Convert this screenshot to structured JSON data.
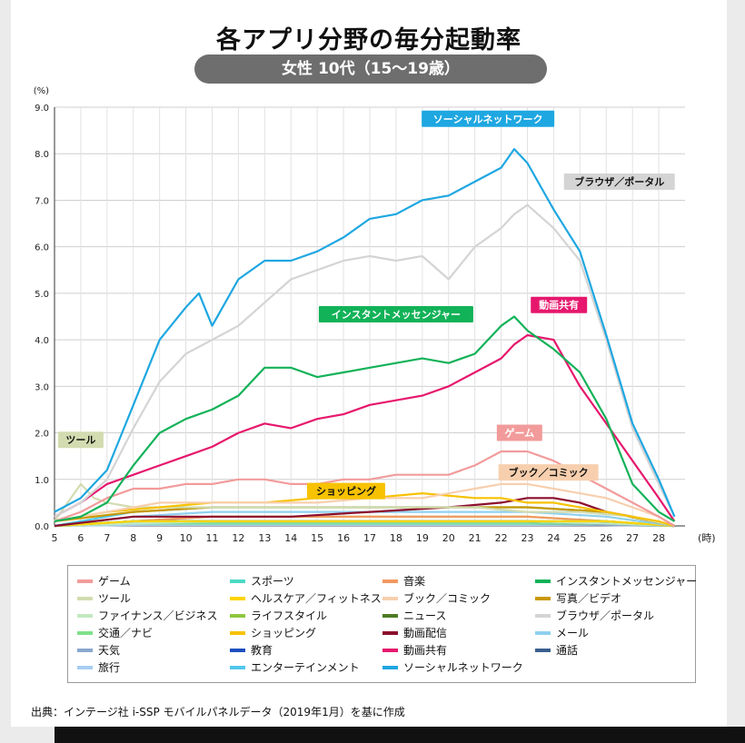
{
  "title": "各アプリ分野の毎分起動率",
  "subtitle": "女性 10代（15～19歳）",
  "source": "出典：インテージ社 i-SSP モバイルパネルデータ（2019年1月）を基に作成",
  "chart_data": {
    "type": "line",
    "ylabel": "(%)",
    "xlabel": "(時)",
    "xlim": [
      5,
      29
    ],
    "ylim": [
      0,
      9.0
    ],
    "yticks": [
      "0.0",
      "1.0",
      "2.0",
      "3.0",
      "4.0",
      "5.0",
      "6.0",
      "7.0",
      "8.0",
      "9.0"
    ],
    "xticks": [
      "5",
      "6",
      "7",
      "8",
      "9",
      "10",
      "11",
      "12",
      "13",
      "14",
      "15",
      "16",
      "17",
      "18",
      "19",
      "20",
      "21",
      "22",
      "23",
      "24",
      "25",
      "26",
      "27",
      "28"
    ],
    "grid": true,
    "legend_position": "bottom",
    "series": [
      {
        "name": "ソーシャルネットワーク",
        "color": "#1ea7e1",
        "label_on_chart": true,
        "x": [
          5,
          6,
          7,
          8,
          9,
          10,
          10.5,
          11,
          12,
          13,
          14,
          15,
          16,
          17,
          18,
          19,
          20,
          21,
          22,
          22.5,
          23,
          24,
          25,
          26,
          27,
          28,
          28.6
        ],
        "y": [
          0.3,
          0.6,
          1.2,
          2.6,
          4.0,
          4.7,
          5.0,
          4.3,
          5.3,
          5.7,
          5.7,
          5.9,
          6.2,
          6.6,
          6.7,
          7.0,
          7.1,
          7.4,
          7.7,
          8.1,
          7.8,
          6.8,
          5.9,
          4.1,
          2.2,
          1.0,
          0.2
        ]
      },
      {
        "name": "ブラウザ／ポータル",
        "color": "#d4d4d4",
        "label_on_chart": true,
        "x": [
          5,
          6,
          7,
          8,
          9,
          10,
          11,
          12,
          13,
          14,
          15,
          16,
          17,
          18,
          19,
          20,
          21,
          22,
          22.5,
          23,
          24,
          25,
          26,
          27,
          28,
          28.6
        ],
        "y": [
          0.2,
          0.5,
          1.0,
          2.1,
          3.1,
          3.7,
          4.0,
          4.3,
          4.8,
          5.3,
          5.5,
          5.7,
          5.8,
          5.7,
          5.8,
          5.3,
          6.0,
          6.4,
          6.7,
          6.9,
          6.4,
          5.7,
          4.0,
          2.1,
          0.9,
          0.2
        ]
      },
      {
        "name": "インスタントメッセンジャー",
        "color": "#12b258",
        "label_on_chart": true,
        "x": [
          5,
          6,
          7,
          8,
          9,
          10,
          11,
          12,
          13,
          14,
          15,
          16,
          17,
          18,
          19,
          20,
          21,
          22,
          22.5,
          23,
          24,
          25,
          26,
          27,
          28,
          28.6
        ],
        "y": [
          0.1,
          0.2,
          0.5,
          1.3,
          2.0,
          2.3,
          2.5,
          2.8,
          3.4,
          3.4,
          3.2,
          3.3,
          3.4,
          3.5,
          3.6,
          3.5,
          3.7,
          4.3,
          4.5,
          4.2,
          3.8,
          3.3,
          2.3,
          0.9,
          0.3,
          0.1
        ]
      },
      {
        "name": "動画共有",
        "color": "#e6176d",
        "label_on_chart": true,
        "x": [
          5,
          6,
          7,
          8,
          9,
          10,
          11,
          12,
          13,
          14,
          15,
          16,
          17,
          18,
          19,
          20,
          21,
          22,
          22.5,
          23,
          24,
          25,
          26,
          27,
          28,
          28.6
        ],
        "y": [
          0.2,
          0.5,
          0.9,
          1.1,
          1.3,
          1.5,
          1.7,
          2.0,
          2.2,
          2.1,
          2.3,
          2.4,
          2.6,
          2.7,
          2.8,
          3.0,
          3.3,
          3.6,
          3.9,
          4.1,
          4.0,
          3.0,
          2.2,
          1.4,
          0.6,
          0.1
        ]
      },
      {
        "name": "ゲーム",
        "color": "#f29b9b",
        "label_on_chart": true,
        "x": [
          5,
          6,
          7,
          8,
          9,
          10,
          11,
          12,
          13,
          14,
          15,
          16,
          17,
          18,
          19,
          20,
          21,
          22,
          23,
          24,
          25,
          26,
          27,
          28,
          28.6
        ],
        "y": [
          0.1,
          0.3,
          0.6,
          0.8,
          0.8,
          0.9,
          0.9,
          1.0,
          1.0,
          0.9,
          0.9,
          1.0,
          1.0,
          1.1,
          1.1,
          1.1,
          1.3,
          1.6,
          1.6,
          1.4,
          1.1,
          0.8,
          0.5,
          0.2,
          0.0
        ]
      },
      {
        "name": "ブック／コミック",
        "color": "#f7cfae",
        "label_on_chart": true,
        "x": [
          5,
          7,
          9,
          11,
          13,
          15,
          17,
          19,
          21,
          22,
          23,
          24,
          25,
          26,
          27,
          28,
          28.6
        ],
        "y": [
          0.1,
          0.3,
          0.5,
          0.5,
          0.5,
          0.5,
          0.6,
          0.6,
          0.8,
          0.9,
          0.9,
          0.8,
          0.7,
          0.6,
          0.4,
          0.2,
          0.0
        ]
      },
      {
        "name": "ショッピング",
        "color": "#f7c200",
        "label_on_chart": true,
        "x": [
          5,
          7,
          9,
          11,
          13,
          15,
          17,
          19,
          21,
          22,
          23,
          24,
          25,
          26,
          27,
          28,
          28.6
        ],
        "y": [
          0.1,
          0.3,
          0.4,
          0.5,
          0.5,
          0.6,
          0.6,
          0.7,
          0.6,
          0.6,
          0.5,
          0.5,
          0.4,
          0.3,
          0.2,
          0.1,
          0.0
        ]
      },
      {
        "name": "ツール",
        "color": "#d2dcb0",
        "label_on_chart": true,
        "x": [
          5,
          6,
          6.5,
          7,
          8,
          9,
          11,
          13,
          15,
          17,
          19,
          21,
          23,
          25,
          27,
          28.6
        ],
        "y": [
          0.1,
          0.9,
          0.6,
          0.5,
          0.4,
          0.4,
          0.4,
          0.4,
          0.4,
          0.4,
          0.4,
          0.4,
          0.3,
          0.3,
          0.2,
          0.0
        ]
      },
      {
        "name": "写真／ビデオ",
        "color": "#c99800",
        "label_on_chart": false,
        "x": [
          5,
          8,
          11,
          14,
          17,
          20,
          23,
          26,
          28.6
        ],
        "y": [
          0.1,
          0.3,
          0.4,
          0.4,
          0.4,
          0.4,
          0.4,
          0.3,
          0.0
        ]
      },
      {
        "name": "動画配信",
        "color": "#8c0d2c",
        "label_on_chart": false,
        "x": [
          5,
          8,
          11,
          14,
          17,
          20,
          22,
          23,
          24,
          25,
          26,
          27,
          28.6
        ],
        "y": [
          0.0,
          0.2,
          0.2,
          0.2,
          0.3,
          0.4,
          0.5,
          0.6,
          0.6,
          0.5,
          0.3,
          0.2,
          0.0
        ]
      },
      {
        "name": "エンターテインメント",
        "color": "#51c7ec",
        "label_on_chart": false,
        "x": [
          5,
          8,
          11,
          14,
          17,
          20,
          23,
          26,
          28.6
        ],
        "y": [
          0.0,
          0.3,
          0.4,
          0.4,
          0.4,
          0.4,
          0.4,
          0.3,
          0.0
        ]
      },
      {
        "name": "メール",
        "color": "#8fd0ee",
        "label_on_chart": false,
        "x": [
          5,
          8,
          11,
          14,
          17,
          20,
          23,
          26,
          28.6
        ],
        "y": [
          0.0,
          0.2,
          0.3,
          0.3,
          0.3,
          0.3,
          0.3,
          0.2,
          0.0
        ]
      },
      {
        "name": "ヘルスケア／フィットネス",
        "color": "#ffd400",
        "label_on_chart": false,
        "x": [
          5,
          8,
          11,
          14,
          17,
          20,
          23,
          26,
          28.6
        ],
        "y": [
          0.0,
          0.1,
          0.1,
          0.1,
          0.1,
          0.1,
          0.1,
          0.1,
          0.0
        ]
      },
      {
        "name": "スポーツ",
        "color": "#4cd9c3",
        "label_on_chart": false,
        "x": [
          5,
          8,
          11,
          14,
          17,
          20,
          23,
          26,
          28.6
        ],
        "y": [
          0.0,
          0.1,
          0.1,
          0.1,
          0.1,
          0.1,
          0.1,
          0.1,
          0.0
        ]
      },
      {
        "name": "音楽",
        "color": "#f49860",
        "label_on_chart": false,
        "x": [
          5,
          8,
          11,
          14,
          17,
          20,
          23,
          26,
          28.6
        ],
        "y": [
          0.0,
          0.1,
          0.2,
          0.2,
          0.2,
          0.2,
          0.2,
          0.1,
          0.0
        ]
      },
      {
        "name": "ファイナンス／ビジネス",
        "color": "#c3e8c0",
        "label_on_chart": false,
        "x": [
          5,
          8,
          11,
          14,
          17,
          20,
          23,
          26,
          28.6
        ],
        "y": [
          0.0,
          0.05,
          0.1,
          0.1,
          0.1,
          0.1,
          0.1,
          0.05,
          0.0
        ]
      },
      {
        "name": "ライフスタイル",
        "color": "#8dc63f",
        "label_on_chart": false,
        "x": [
          5,
          8,
          11,
          14,
          17,
          20,
          23,
          26,
          28.6
        ],
        "y": [
          0.0,
          0.1,
          0.2,
          0.2,
          0.2,
          0.2,
          0.2,
          0.1,
          0.0
        ]
      },
      {
        "name": "ニュース",
        "color": "#4f7a24",
        "label_on_chart": false,
        "x": [
          5,
          8,
          11,
          14,
          17,
          20,
          23,
          26,
          28.6
        ],
        "y": [
          0.0,
          0.1,
          0.1,
          0.1,
          0.1,
          0.1,
          0.1,
          0.05,
          0.0
        ]
      },
      {
        "name": "交通／ナビ",
        "color": "#7fe08a",
        "label_on_chart": false,
        "x": [
          5,
          8,
          11,
          14,
          17,
          20,
          23,
          26,
          28.6
        ],
        "y": [
          0.0,
          0.05,
          0.05,
          0.05,
          0.05,
          0.05,
          0.05,
          0.05,
          0.0
        ]
      },
      {
        "name": "天気",
        "color": "#8aa7cf",
        "label_on_chart": false,
        "x": [
          5,
          8,
          11,
          14,
          17,
          20,
          23,
          26,
          28.6
        ],
        "y": [
          0.0,
          0.05,
          0.05,
          0.05,
          0.05,
          0.05,
          0.05,
          0.02,
          0.0
        ]
      },
      {
        "name": "教育",
        "color": "#1f4fbf",
        "label_on_chart": false,
        "x": [
          5,
          8,
          11,
          14,
          17,
          20,
          23,
          26,
          28.6
        ],
        "y": [
          0.0,
          0.1,
          0.1,
          0.1,
          0.1,
          0.1,
          0.1,
          0.05,
          0.0
        ]
      },
      {
        "name": "旅行",
        "color": "#a6cdf2",
        "label_on_chart": false,
        "x": [
          5,
          8,
          11,
          14,
          17,
          20,
          23,
          26,
          28.6
        ],
        "y": [
          0.0,
          0.02,
          0.02,
          0.02,
          0.02,
          0.02,
          0.02,
          0.02,
          0.0
        ]
      },
      {
        "name": "通話",
        "color": "#3b5f8f",
        "label_on_chart": false,
        "x": [
          5,
          8,
          11,
          14,
          17,
          20,
          23,
          26,
          28.6
        ],
        "y": [
          0.0,
          0.1,
          0.1,
          0.1,
          0.1,
          0.1,
          0.1,
          0.05,
          0.0
        ]
      }
    ],
    "legend": [
      [
        "ゲーム",
        "スポーツ",
        "音楽",
        "インスタントメッセンジャー"
      ],
      [
        "ツール",
        "ヘルスケア／フィットネス",
        "ブック／コミック",
        "写真／ビデオ"
      ],
      [
        "ファイナンス／ビジネス",
        "ライフスタイル",
        "ニュース",
        "ブラウザ／ポータル"
      ],
      [
        "交通／ナビ",
        "ショッピング",
        "動画配信",
        "メール"
      ],
      [
        "天気",
        "教育",
        "動画共有",
        "通話"
      ],
      [
        "旅行",
        "エンターテインメント",
        "ソーシャルネットワーク",
        ""
      ]
    ]
  }
}
